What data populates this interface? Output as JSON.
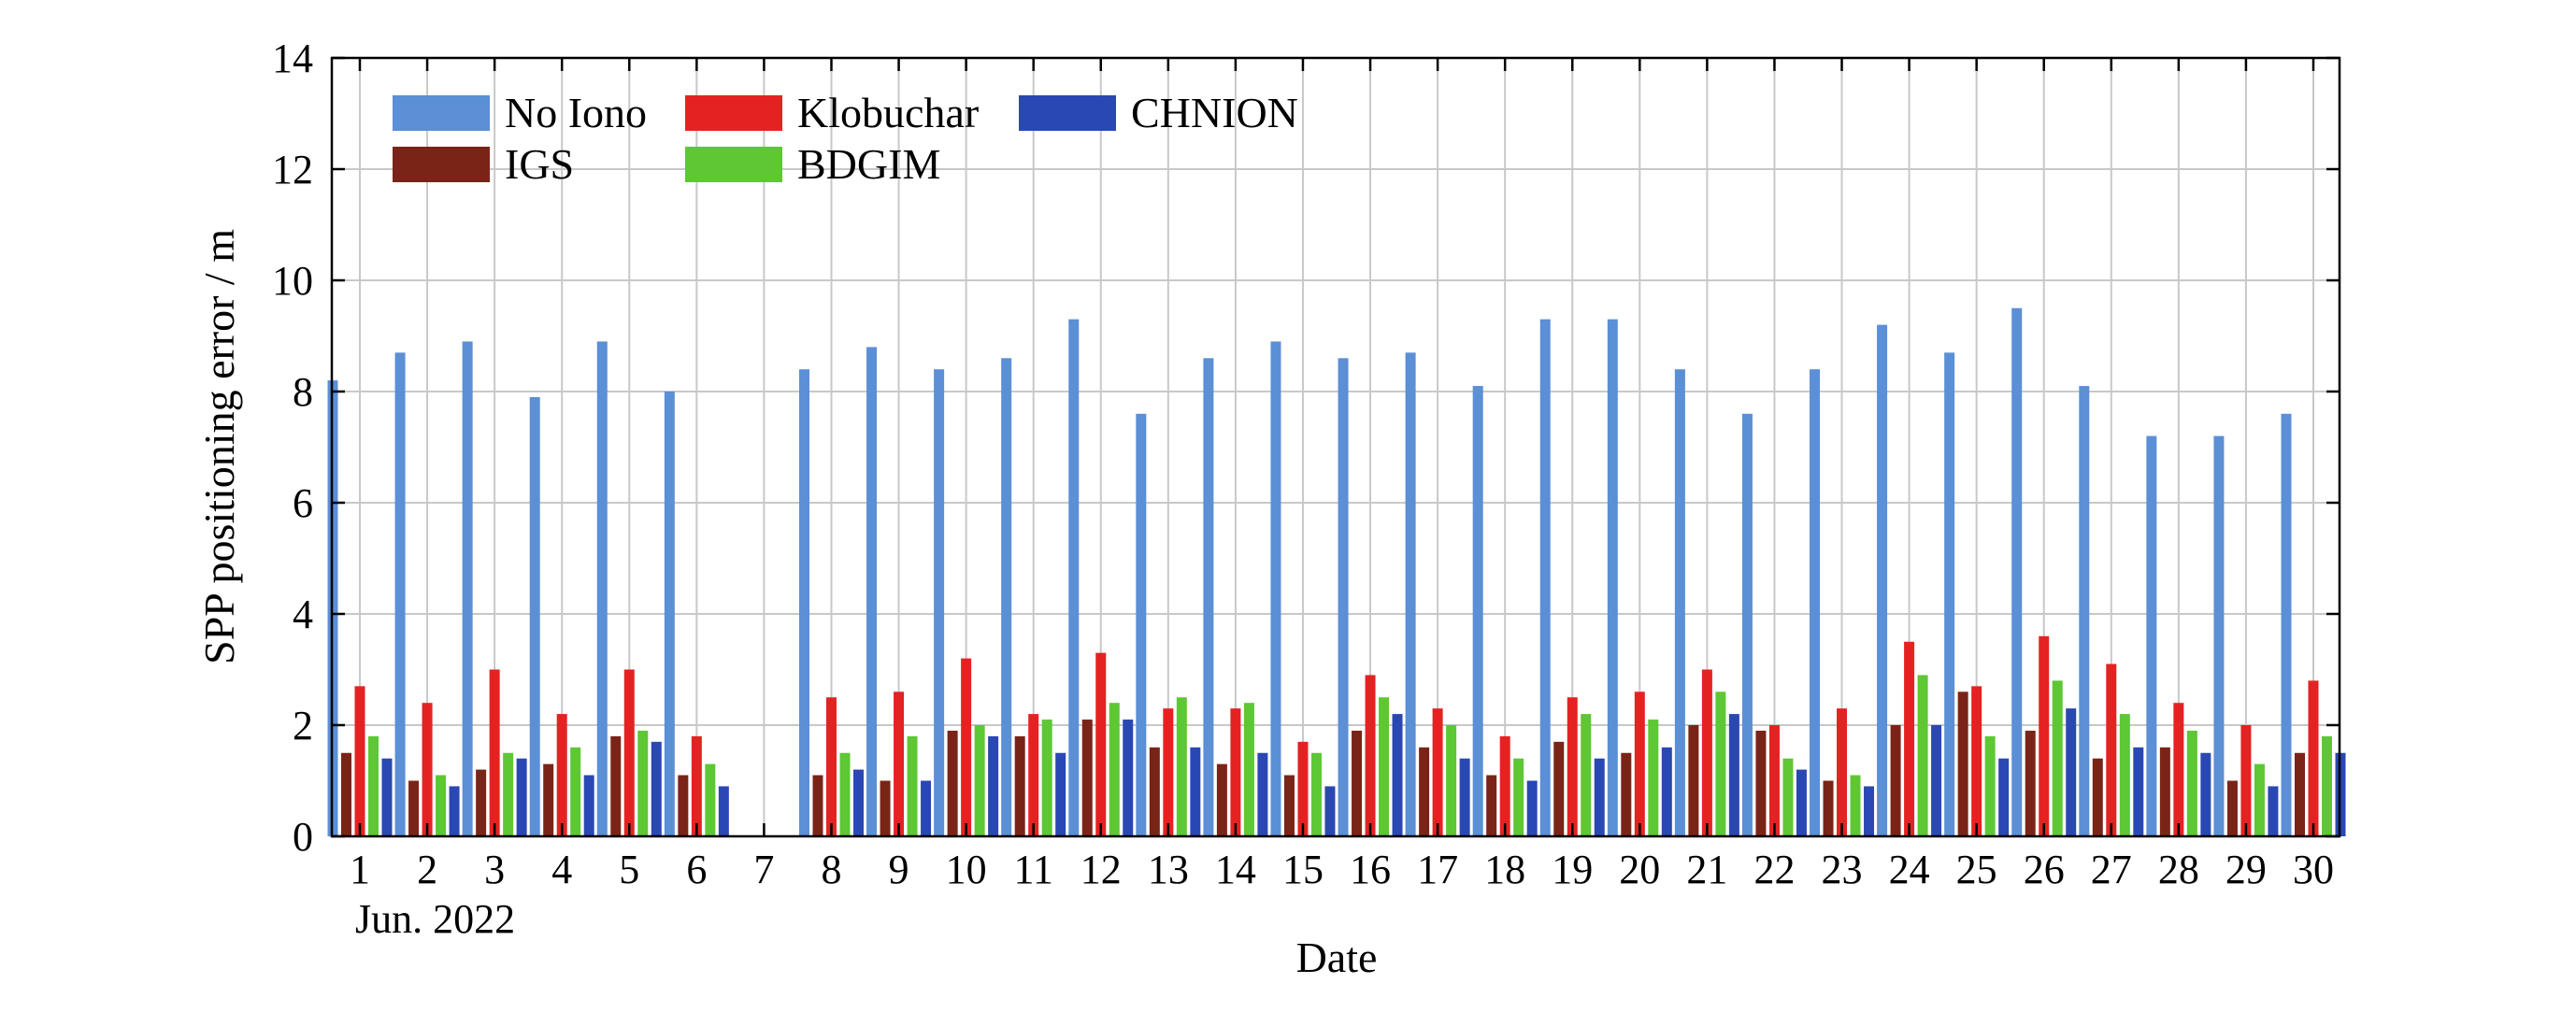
{
  "chart_data": {
    "type": "bar",
    "categories": [
      "1",
      "2",
      "3",
      "4",
      "5",
      "6",
      "7",
      "8",
      "9",
      "10",
      "11",
      "12",
      "13",
      "14",
      "15",
      "16",
      "17",
      "18",
      "19",
      "20",
      "21",
      "22",
      "23",
      "24",
      "25",
      "26",
      "27",
      "28",
      "29",
      "30"
    ],
    "x_sublabel": "Jun. 2022",
    "xlabel": "Date",
    "ylabel": "SPP positioning error / m",
    "ylim": [
      0,
      14
    ],
    "yticks": [
      0,
      2,
      4,
      6,
      8,
      10,
      12,
      14
    ],
    "grid": true,
    "legend_position": "top-left",
    "series": [
      {
        "name": "No Iono",
        "color": "#5b8fd6",
        "values": [
          8.2,
          8.7,
          8.9,
          7.9,
          8.9,
          8.0,
          null,
          8.4,
          8.8,
          8.4,
          8.6,
          9.3,
          7.6,
          8.6,
          8.9,
          8.6,
          8.7,
          8.1,
          9.3,
          9.3,
          8.4,
          7.6,
          8.4,
          9.2,
          8.7,
          9.5,
          8.1,
          7.2,
          7.2,
          7.6
        ]
      },
      {
        "name": "IGS",
        "color": "#7a2418",
        "values": [
          1.5,
          1.0,
          1.2,
          1.3,
          1.8,
          1.1,
          null,
          1.1,
          1.0,
          1.9,
          1.8,
          2.1,
          1.6,
          1.3,
          1.1,
          1.9,
          1.6,
          1.1,
          1.7,
          1.5,
          2.0,
          1.9,
          1.0,
          2.0,
          2.6,
          1.9,
          1.4,
          1.6,
          1.0,
          1.5
        ]
      },
      {
        "name": "Klobuchar",
        "color": "#e52222",
        "values": [
          2.7,
          2.4,
          3.0,
          2.2,
          3.0,
          1.8,
          null,
          2.5,
          2.6,
          3.2,
          2.2,
          3.3,
          2.3,
          2.3,
          1.7,
          2.9,
          2.3,
          1.8,
          2.5,
          2.6,
          3.0,
          2.0,
          2.3,
          3.5,
          2.7,
          3.6,
          3.1,
          2.4,
          2.0,
          2.8
        ]
      },
      {
        "name": "BDGIM",
        "color": "#5ec734",
        "values": [
          1.8,
          1.1,
          1.5,
          1.6,
          1.9,
          1.3,
          null,
          1.5,
          1.8,
          2.0,
          2.1,
          2.4,
          2.5,
          2.4,
          1.5,
          2.5,
          2.0,
          1.4,
          2.2,
          2.1,
          2.6,
          1.4,
          1.1,
          2.9,
          1.8,
          2.8,
          2.2,
          1.9,
          1.3,
          1.8
        ]
      },
      {
        "name": "CHNION",
        "color": "#2a48b4",
        "values": [
          1.4,
          0.9,
          1.4,
          1.1,
          1.7,
          0.9,
          null,
          1.2,
          1.0,
          1.8,
          1.5,
          2.1,
          1.6,
          1.5,
          0.9,
          2.2,
          1.4,
          1.0,
          1.4,
          1.6,
          2.2,
          1.2,
          0.9,
          2.0,
          1.4,
          2.3,
          1.6,
          1.5,
          0.9,
          1.5
        ]
      }
    ],
    "legend_order": [
      "No Iono",
      "Klobuchar",
      "CHNION",
      "IGS",
      "BDGIM"
    ]
  }
}
